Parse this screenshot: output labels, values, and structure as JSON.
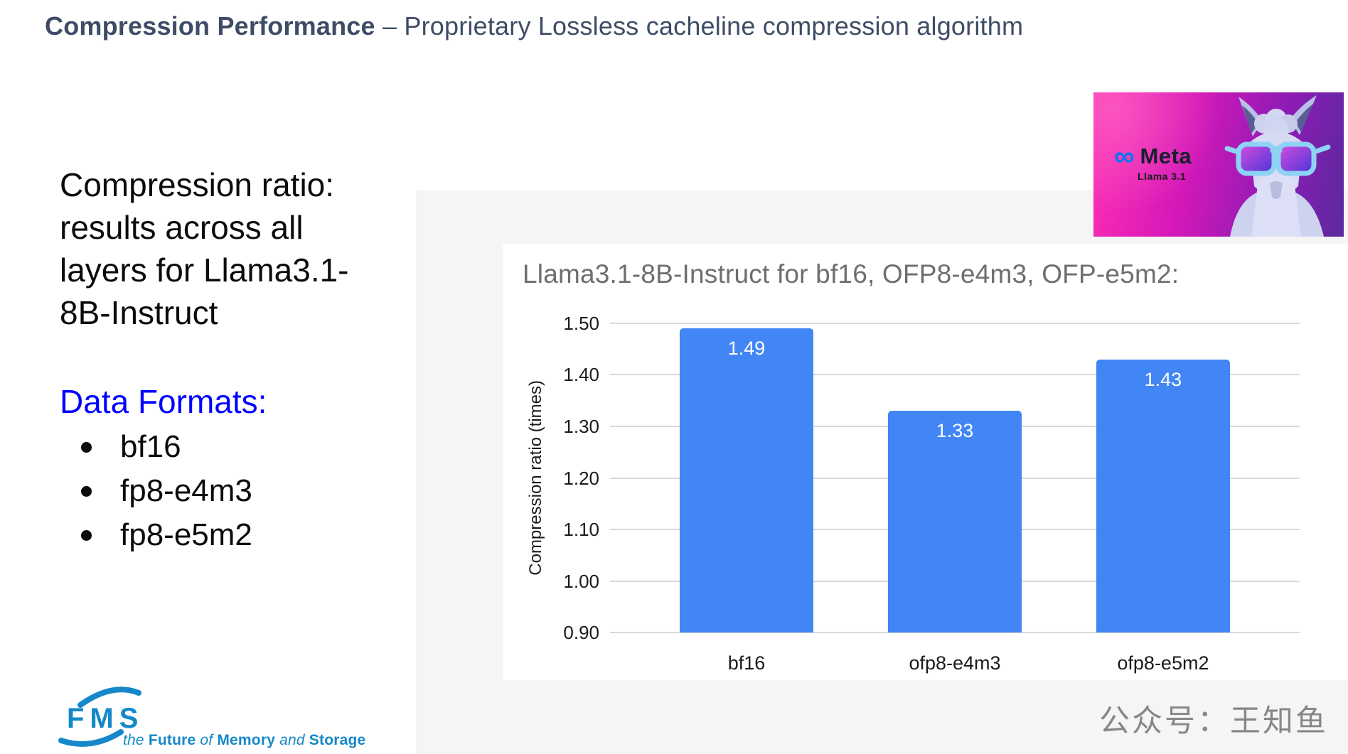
{
  "slide": {
    "title_bold": "Compression Performance",
    "title_rest": " – Proprietary Lossless cacheline compression algorithm"
  },
  "left_panel": {
    "heading_lines": [
      "Compression ratio:",
      "results across all",
      "layers for Llama3.1-",
      "8B-Instruct"
    ],
    "data_formats_label": "Data Formats:",
    "data_formats": [
      "bf16",
      "fp8-e4m3",
      "fp8-e5m2"
    ]
  },
  "meta_card": {
    "infinity_icon": "∞",
    "brand": "Meta",
    "model": "Llama 3.1"
  },
  "chart_data": {
    "type": "bar",
    "title": "Llama3.1-8B-Instruct for bf16, OFP8-e4m3, OFP-e5m2:",
    "categories": [
      "bf16",
      "ofp8-e4m3",
      "ofp8-e5m2"
    ],
    "values": [
      1.49,
      1.33,
      1.43
    ],
    "value_labels": [
      "1.49",
      "1.33",
      "1.43"
    ],
    "xlabel": "",
    "ylabel": "Compression ratio (times)",
    "ylim": [
      0.9,
      1.5
    ],
    "ytick_step": 0.1,
    "grid": true,
    "legend": "none",
    "bar_color": "#4285f4",
    "value_label_color": "#ffffff"
  },
  "footer": {
    "fms_acronym": "FMS",
    "tagline": [
      {
        "text": "the ",
        "style": "italic"
      },
      {
        "text": "Future ",
        "style": "bold"
      },
      {
        "text": "of ",
        "style": "italic"
      },
      {
        "text": "Memory ",
        "style": "bold"
      },
      {
        "text": "and ",
        "style": "italic"
      },
      {
        "text": "Storage",
        "style": "bold"
      }
    ],
    "wechat_label": "公众号：王知鱼"
  },
  "colors": {
    "title_navy": "#3e4c66",
    "accent_blue": "#0000fe",
    "bar_blue": "#4285f4",
    "gridline_gray": "#d9d9d9",
    "chart_title_gray": "#6e6e6e",
    "fms_blue": "#1588c9",
    "wechat_gray": "#878787"
  }
}
